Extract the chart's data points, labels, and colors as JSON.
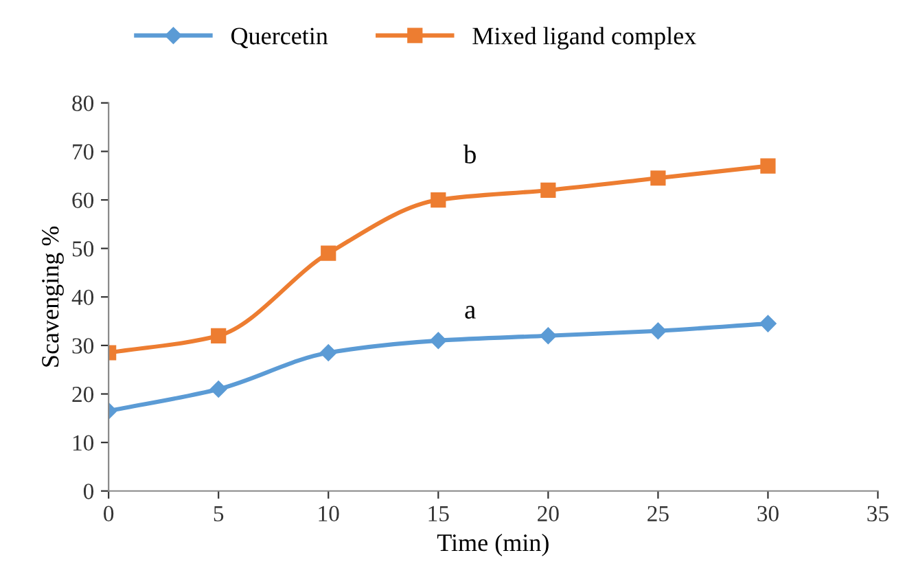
{
  "chart_data": {
    "type": "line",
    "xlabel": "Time (min)",
    "ylabel": "Scavenging %",
    "x": [
      0,
      5,
      10,
      15,
      20,
      25,
      30
    ],
    "series": [
      {
        "name": "Quercetin",
        "color": "#5b9bd5",
        "marker": "diamond",
        "values": [
          16.5,
          21,
          28.5,
          31,
          32,
          33,
          34.5
        ]
      },
      {
        "name": "Mixed ligand complex",
        "color": "#ed7d31",
        "marker": "square",
        "values": [
          28.5,
          32,
          49,
          60,
          62,
          64.5,
          67
        ]
      }
    ],
    "annotations": [
      "a",
      "b"
    ],
    "xlim": [
      0,
      35
    ],
    "xticks": [
      0,
      5,
      10,
      15,
      20,
      25,
      30,
      35
    ],
    "ylim": [
      0,
      80
    ],
    "yticks": [
      0,
      10,
      20,
      30,
      40,
      50,
      60,
      70,
      80
    ],
    "grid": false,
    "legend": "top",
    "line_style": "solid"
  }
}
